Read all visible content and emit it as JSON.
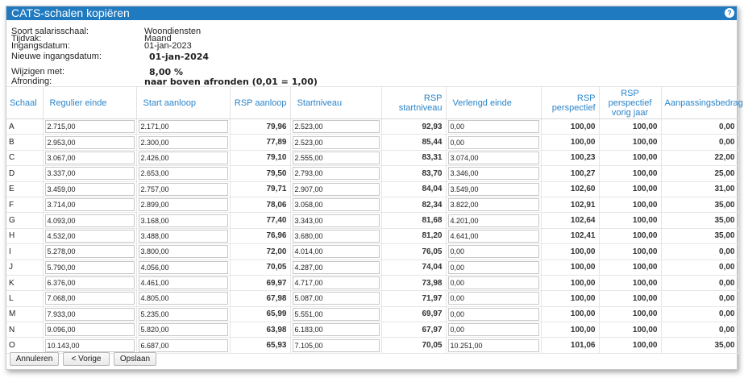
{
  "window": {
    "title": "CATS-schalen kopiëren",
    "help_glyph": "?"
  },
  "info": {
    "soort_label": "Soort salarisschaal:",
    "soort_value": "Woondiensten",
    "tijdvak_label": "Tijdvak:",
    "tijdvak_value": "Maand",
    "ingang_label": "Ingangsdatum:",
    "ingang_value": "01-jan-2023",
    "nieuwe_label": "Nieuwe ingangsdatum:",
    "nieuwe_value": "01-jan-2024",
    "wijzigen_label": "Wijzigen met:",
    "wijzigen_value": "8,00 %",
    "afronding_label": "Afronding:",
    "afronding_value": "naar boven afronden (0,01 = 1,00)"
  },
  "columns": {
    "schaal": "Schaal",
    "regulier_einde": "Regulier einde",
    "start_aanloop": "Start aanloop",
    "rsp_aanloop": "RSP aanloop",
    "startniveau": "Startniveau",
    "rsp_startniveau_1": "RSP",
    "rsp_startniveau_2": "startniveau",
    "verlengd_einde": "Verlengd einde",
    "rsp_perspectief_1": "RSP",
    "rsp_perspectief_2": "perspectief",
    "rsp_vorig_1": "RSP",
    "rsp_vorig_2": "perspectief",
    "rsp_vorig_3": "vorig jaar",
    "aanpassingsbedrag": "Aanpassingsbedrag"
  },
  "rows": [
    {
      "schaal": "A",
      "regulier_einde": "2.715,00",
      "start_aanloop": "2.171,00",
      "rsp_aanloop": "79,96",
      "startniveau": "2.523,00",
      "rsp_startniveau": "92,93",
      "verlengd_einde": "0,00",
      "rsp_perspectief": "100,00",
      "rsp_vorig": "100,00",
      "aanpassingsbedrag": "0,00"
    },
    {
      "schaal": "B",
      "regulier_einde": "2.953,00",
      "start_aanloop": "2.300,00",
      "rsp_aanloop": "77,89",
      "startniveau": "2.523,00",
      "rsp_startniveau": "85,44",
      "verlengd_einde": "0,00",
      "rsp_perspectief": "100,00",
      "rsp_vorig": "100,00",
      "aanpassingsbedrag": "0,00"
    },
    {
      "schaal": "C",
      "regulier_einde": "3.067,00",
      "start_aanloop": "2.426,00",
      "rsp_aanloop": "79,10",
      "startniveau": "2.555,00",
      "rsp_startniveau": "83,31",
      "verlengd_einde": "3.074,00",
      "rsp_perspectief": "100,23",
      "rsp_vorig": "100,00",
      "aanpassingsbedrag": "22,00"
    },
    {
      "schaal": "D",
      "regulier_einde": "3.337,00",
      "start_aanloop": "2.653,00",
      "rsp_aanloop": "79,50",
      "startniveau": "2.793,00",
      "rsp_startniveau": "83,70",
      "verlengd_einde": "3.346,00",
      "rsp_perspectief": "100,27",
      "rsp_vorig": "100,00",
      "aanpassingsbedrag": "25,00"
    },
    {
      "schaal": "E",
      "regulier_einde": "3.459,00",
      "start_aanloop": "2.757,00",
      "rsp_aanloop": "79,71",
      "startniveau": "2.907,00",
      "rsp_startniveau": "84,04",
      "verlengd_einde": "3.549,00",
      "rsp_perspectief": "102,60",
      "rsp_vorig": "100,00",
      "aanpassingsbedrag": "31,00"
    },
    {
      "schaal": "F",
      "regulier_einde": "3.714,00",
      "start_aanloop": "2.899,00",
      "rsp_aanloop": "78,06",
      "startniveau": "3.058,00",
      "rsp_startniveau": "82,34",
      "verlengd_einde": "3.822,00",
      "rsp_perspectief": "102,91",
      "rsp_vorig": "100,00",
      "aanpassingsbedrag": "35,00"
    },
    {
      "schaal": "G",
      "regulier_einde": "4.093,00",
      "start_aanloop": "3.168,00",
      "rsp_aanloop": "77,40",
      "startniveau": "3.343,00",
      "rsp_startniveau": "81,68",
      "verlengd_einde": "4.201,00",
      "rsp_perspectief": "102,64",
      "rsp_vorig": "100,00",
      "aanpassingsbedrag": "35,00"
    },
    {
      "schaal": "H",
      "regulier_einde": "4.532,00",
      "start_aanloop": "3.488,00",
      "rsp_aanloop": "76,96",
      "startniveau": "3.680,00",
      "rsp_startniveau": "81,20",
      "verlengd_einde": "4.641,00",
      "rsp_perspectief": "102,41",
      "rsp_vorig": "100,00",
      "aanpassingsbedrag": "35,00"
    },
    {
      "schaal": "I",
      "regulier_einde": "5.278,00",
      "start_aanloop": "3.800,00",
      "rsp_aanloop": "72,00",
      "startniveau": "4.014,00",
      "rsp_startniveau": "76,05",
      "verlengd_einde": "0,00",
      "rsp_perspectief": "100,00",
      "rsp_vorig": "100,00",
      "aanpassingsbedrag": "0,00"
    },
    {
      "schaal": "J",
      "regulier_einde": "5.790,00",
      "start_aanloop": "4.056,00",
      "rsp_aanloop": "70,05",
      "startniveau": "4.287,00",
      "rsp_startniveau": "74,04",
      "verlengd_einde": "0,00",
      "rsp_perspectief": "100,00",
      "rsp_vorig": "100,00",
      "aanpassingsbedrag": "0,00"
    },
    {
      "schaal": "K",
      "regulier_einde": "6.376,00",
      "start_aanloop": "4.461,00",
      "rsp_aanloop": "69,97",
      "startniveau": "4.717,00",
      "rsp_startniveau": "73,98",
      "verlengd_einde": "0,00",
      "rsp_perspectief": "100,00",
      "rsp_vorig": "100,00",
      "aanpassingsbedrag": "0,00"
    },
    {
      "schaal": "L",
      "regulier_einde": "7.068,00",
      "start_aanloop": "4.805,00",
      "rsp_aanloop": "67,98",
      "startniveau": "5.087,00",
      "rsp_startniveau": "71,97",
      "verlengd_einde": "0,00",
      "rsp_perspectief": "100,00",
      "rsp_vorig": "100,00",
      "aanpassingsbedrag": "0,00"
    },
    {
      "schaal": "M",
      "regulier_einde": "7.933,00",
      "start_aanloop": "5.235,00",
      "rsp_aanloop": "65,99",
      "startniveau": "5.551,00",
      "rsp_startniveau": "69,97",
      "verlengd_einde": "0,00",
      "rsp_perspectief": "100,00",
      "rsp_vorig": "100,00",
      "aanpassingsbedrag": "0,00"
    },
    {
      "schaal": "N",
      "regulier_einde": "9.096,00",
      "start_aanloop": "5.820,00",
      "rsp_aanloop": "63,98",
      "startniveau": "6.183,00",
      "rsp_startniveau": "67,97",
      "verlengd_einde": "0,00",
      "rsp_perspectief": "100,00",
      "rsp_vorig": "100,00",
      "aanpassingsbedrag": "0,00"
    },
    {
      "schaal": "O",
      "regulier_einde": "10.143,00",
      "start_aanloop": "6.687,00",
      "rsp_aanloop": "65,93",
      "startniveau": "7.105,00",
      "rsp_startniveau": "70,05",
      "verlengd_einde": "10.251,00",
      "rsp_perspectief": "101,06",
      "rsp_vorig": "100,00",
      "aanpassingsbedrag": "35,00"
    }
  ],
  "buttons": {
    "annuleren": "Annuleren",
    "vorige": "< Vorige",
    "opslaan": "Opslaan"
  }
}
